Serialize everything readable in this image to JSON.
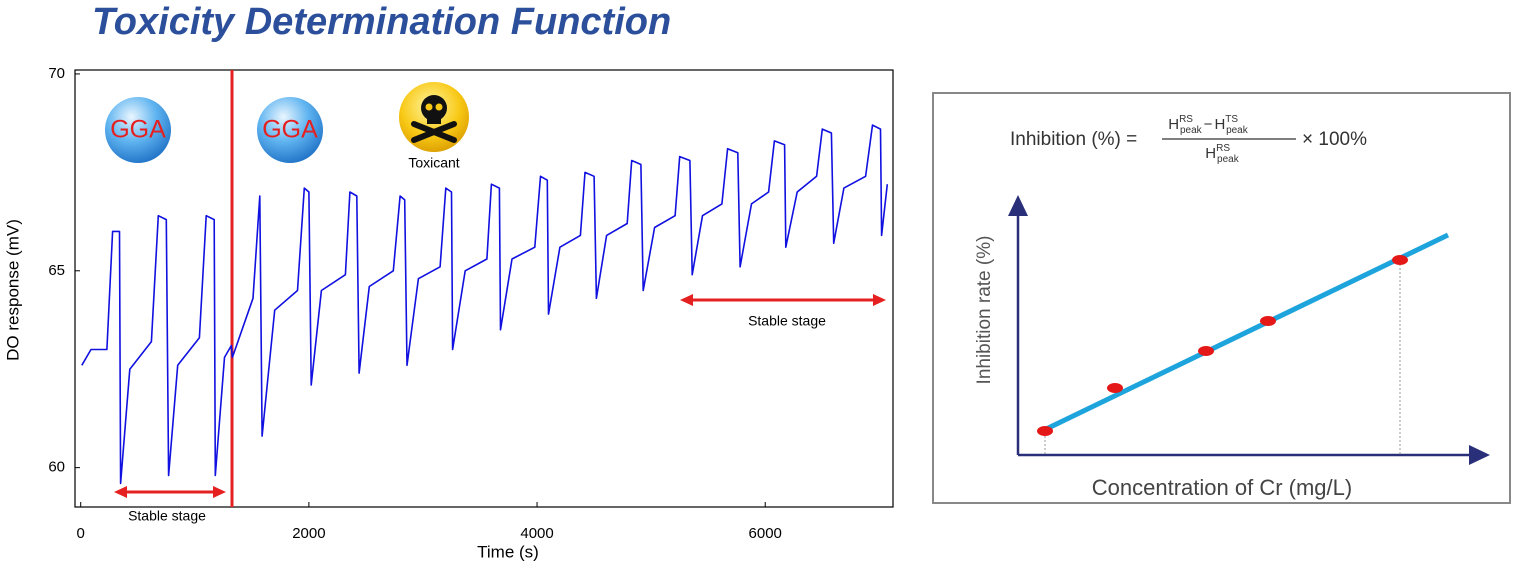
{
  "title": "Toxicity Determination Function",
  "chart_data": {
    "type": "line",
    "x_label": "Time (s)",
    "y_label": "DO response (mV)",
    "annotations": [
      "GGA",
      "GGA",
      "Toxicant",
      "Stable stage",
      "Stable stage"
    ],
    "x": [
      10,
      90,
      230,
      280,
      340,
      350,
      430,
      620,
      680,
      750,
      770,
      850,
      1040,
      1100,
      1170,
      1180,
      1260,
      1320,
      1330,
      1510,
      1570,
      1590,
      1700,
      1900,
      1960,
      2000,
      2020,
      2110,
      2320,
      2360,
      2420,
      2440,
      2530,
      2740,
      2800,
      2840,
      2860,
      2960,
      3150,
      3200,
      3250,
      3260,
      3370,
      3560,
      3600,
      3670,
      3680,
      3780,
      3980,
      4030,
      4090,
      4100,
      4200,
      4380,
      4420,
      4500,
      4520,
      4610,
      4790,
      4830,
      4910,
      4930,
      5030,
      5210,
      5250,
      5340,
      5360,
      5450,
      5620,
      5670,
      5760,
      5780,
      5880,
      6030,
      6080,
      6170,
      6180,
      6280,
      6450,
      6500,
      6580,
      6600,
      6690,
      6880,
      6940,
      7010,
      7020,
      7070
    ],
    "series": [
      {
        "color": "#1010e0",
        "values": [
          62.6,
          63.0,
          63.0,
          66.0,
          66.0,
          59.6,
          62.5,
          63.2,
          66.4,
          66.3,
          59.8,
          62.6,
          63.3,
          66.4,
          66.3,
          59.8,
          62.8,
          63.1,
          62.8,
          64.3,
          66.9,
          60.8,
          64.0,
          64.5,
          67.1,
          67.0,
          62.1,
          64.5,
          64.9,
          67.0,
          66.9,
          62.4,
          64.6,
          65.0,
          66.9,
          66.8,
          62.6,
          64.8,
          65.1,
          67.1,
          67.0,
          63.0,
          65.0,
          65.3,
          67.2,
          67.1,
          63.5,
          65.3,
          65.6,
          67.4,
          67.3,
          63.9,
          65.6,
          65.9,
          67.5,
          67.4,
          64.3,
          65.9,
          66.2,
          67.8,
          67.7,
          64.5,
          66.1,
          66.4,
          67.9,
          67.8,
          64.9,
          66.4,
          66.7,
          68.1,
          68.0,
          65.1,
          66.7,
          67.0,
          68.3,
          68.2,
          65.6,
          67.0,
          67.4,
          68.6,
          68.5,
          65.7,
          67.1,
          67.4,
          68.7,
          68.6,
          65.9,
          67.2
        ]
      }
    ],
    "xlim": [
      -50,
      7120
    ],
    "ylim": [
      59,
      70.1
    ],
    "xticks": [
      0,
      2000,
      4000,
      6000
    ],
    "yticks": [
      60,
      65,
      70
    ]
  },
  "schematic": {
    "formula": {
      "lhs": "Inhibition (%) =",
      "symbol": "H",
      "sub": "peak",
      "reference": "RS",
      "test": "TS",
      "minus": "−",
      "rhs": "× 100%"
    },
    "y_label": "Inhibition rate (%)",
    "x_label": "Concentration of Cr (mg/L)"
  }
}
